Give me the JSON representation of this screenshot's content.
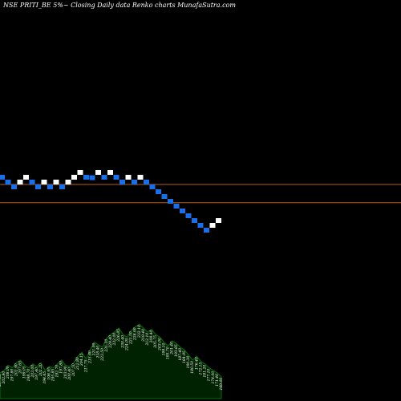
{
  "title": "NSE PRITI_BE 5%~  Closing Daily data  Renko  charts MunafaSutra.com",
  "colors": {
    "background": "#000000",
    "up_brick": "#ffffff",
    "down_brick": "#1a6ee8",
    "level_line": "#b85c1a",
    "volume_fill": "#002200",
    "volume_stroke": "#0b6b0b",
    "label": "#ffffff"
  },
  "chart_data": {
    "type": "renko",
    "bricks": [
      {
        "level": 0,
        "dir": "down"
      },
      {
        "level": -1,
        "dir": "down"
      },
      {
        "level": -2,
        "dir": "down"
      },
      {
        "level": -1,
        "dir": "up"
      },
      {
        "level": 0,
        "dir": "up"
      },
      {
        "level": -1,
        "dir": "down"
      },
      {
        "level": -2,
        "dir": "down"
      },
      {
        "level": -1,
        "dir": "up"
      },
      {
        "level": -2,
        "dir": "down"
      },
      {
        "level": -1,
        "dir": "up"
      },
      {
        "level": -2,
        "dir": "down"
      },
      {
        "level": -1,
        "dir": "up"
      },
      {
        "level": 0,
        "dir": "up"
      },
      {
        "level": 1,
        "dir": "up"
      },
      {
        "level": 0,
        "dir": "down"
      },
      {
        "level": -0.1,
        "dir": "down"
      },
      {
        "level": 1,
        "dir": "up"
      },
      {
        "level": 0,
        "dir": "down"
      },
      {
        "level": 1,
        "dir": "up"
      },
      {
        "level": 0,
        "dir": "down"
      },
      {
        "level": -1,
        "dir": "down"
      },
      {
        "level": 0,
        "dir": "up"
      },
      {
        "level": -1,
        "dir": "down"
      },
      {
        "level": 0,
        "dir": "up"
      },
      {
        "level": -1,
        "dir": "down"
      },
      {
        "level": -2,
        "dir": "down"
      },
      {
        "level": -3,
        "dir": "down"
      },
      {
        "level": -4,
        "dir": "down"
      },
      {
        "level": -5,
        "dir": "down"
      },
      {
        "level": -6,
        "dir": "down"
      },
      {
        "level": -7,
        "dir": "down"
      },
      {
        "level": -8,
        "dir": "down"
      },
      {
        "level": -9,
        "dir": "down"
      },
      {
        "level": -10,
        "dir": "down"
      },
      {
        "level": -11,
        "dir": "down"
      },
      {
        "level": -10,
        "dir": "up"
      },
      {
        "level": -9,
        "dir": "up"
      }
    ],
    "reference_levels": [
      -1.5,
      -5.3
    ],
    "volume": {
      "values": [
        20,
        22,
        26,
        24,
        28,
        30,
        26,
        24,
        27,
        25,
        28,
        22,
        25,
        24,
        27,
        30,
        26,
        25,
        28,
        33,
        36,
        31,
        38,
        44,
        42,
        40,
        47,
        50,
        52,
        55,
        50,
        48,
        53,
        56,
        58,
        55,
        52,
        54,
        50,
        48,
        44,
        41,
        45,
        43,
        40,
        38,
        34,
        30,
        33,
        29,
        27,
        24,
        22,
        20,
        17
      ],
      "labels": [
        "207.60",
        "202.80",
        "208.00",
        "197.80",
        "202.90",
        "207.65",
        "199.05",
        "198.70",
        "203.00",
        "197.40",
        "202.20",
        "194.65",
        "198.95",
        "195.85",
        "192.70",
        "197.80",
        "203.90",
        "200.40",
        "207.50",
        "212.80",
        "204.15",
        "217.75",
        "215.60",
        "221.00",
        "218.40",
        "223.50",
        "231.10",
        "229.40",
        "232.00",
        "226.85",
        "230.40",
        "224.05",
        "221.50",
        "228.90",
        "232.10",
        "219.40",
        "212.10",
        "208.40",
        "205.75",
        "203.00",
        "199.10",
        "195.70",
        "201.40",
        "193.85",
        "187.40",
        "184.95",
        "190.30",
        "180.50",
        "176.40",
        "172.15",
        "181.20",
        "177.10",
        "174.00",
        "171.40",
        "169.00"
      ]
    }
  }
}
